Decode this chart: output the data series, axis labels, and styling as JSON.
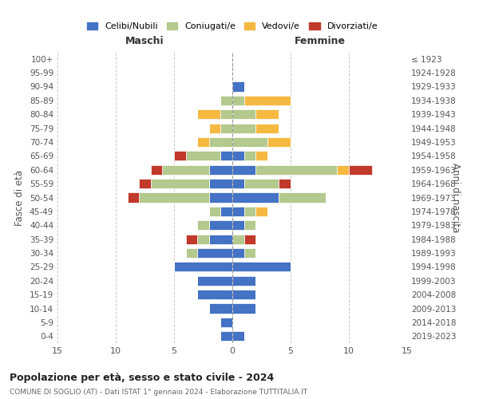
{
  "age_groups": [
    "0-4",
    "5-9",
    "10-14",
    "15-19",
    "20-24",
    "25-29",
    "30-34",
    "35-39",
    "40-44",
    "45-49",
    "50-54",
    "55-59",
    "60-64",
    "65-69",
    "70-74",
    "75-79",
    "80-84",
    "85-89",
    "90-94",
    "95-99",
    "100+"
  ],
  "birth_years": [
    "2019-2023",
    "2014-2018",
    "2009-2013",
    "2004-2008",
    "1999-2003",
    "1994-1998",
    "1989-1993",
    "1984-1988",
    "1979-1983",
    "1974-1978",
    "1969-1973",
    "1964-1968",
    "1959-1963",
    "1954-1958",
    "1949-1953",
    "1944-1948",
    "1939-1943",
    "1934-1938",
    "1929-1933",
    "1924-1928",
    "≤ 1923"
  ],
  "colors": {
    "celibi": "#4472C4",
    "coniugati": "#b3c98d",
    "vedovi": "#f5b942",
    "divorziati": "#c0392b"
  },
  "maschi": {
    "celibi": [
      1,
      1,
      2,
      3,
      3,
      5,
      3,
      2,
      2,
      1,
      2,
      2,
      2,
      1,
      0,
      0,
      0,
      0,
      0,
      0,
      0
    ],
    "coniugati": [
      0,
      0,
      0,
      0,
      0,
      0,
      1,
      1,
      1,
      1,
      6,
      5,
      4,
      3,
      2,
      1,
      1,
      1,
      0,
      0,
      0
    ],
    "vedovi": [
      0,
      0,
      0,
      0,
      0,
      0,
      0,
      0,
      0,
      0,
      0,
      0,
      0,
      0,
      1,
      1,
      2,
      0,
      0,
      0,
      0
    ],
    "divorziati": [
      0,
      0,
      0,
      0,
      0,
      0,
      0,
      1,
      0,
      0,
      1,
      1,
      1,
      1,
      0,
      0,
      0,
      0,
      0,
      0,
      0
    ]
  },
  "femmine": {
    "celibi": [
      1,
      0,
      2,
      2,
      2,
      5,
      1,
      0,
      1,
      1,
      4,
      1,
      2,
      1,
      0,
      0,
      0,
      0,
      1,
      0,
      0
    ],
    "coniugati": [
      0,
      0,
      0,
      0,
      0,
      0,
      1,
      1,
      1,
      1,
      4,
      3,
      7,
      1,
      3,
      2,
      2,
      1,
      0,
      0,
      0
    ],
    "vedovi": [
      0,
      0,
      0,
      0,
      0,
      0,
      0,
      0,
      0,
      1,
      0,
      0,
      1,
      1,
      2,
      2,
      2,
      4,
      0,
      0,
      0
    ],
    "divorziati": [
      0,
      0,
      0,
      0,
      0,
      0,
      0,
      1,
      0,
      0,
      0,
      1,
      2,
      0,
      0,
      0,
      0,
      0,
      0,
      0,
      0
    ]
  },
  "xlim": 15,
  "title": "Popolazione per età, sesso e stato civile - 2024",
  "subtitle": "COMUNE DI SOGLIO (AT) - Dati ISTAT 1° gennaio 2024 - Elaborazione TUTTITALIA.IT",
  "ylabel_left": "Fasce di età",
  "ylabel_right": "Anni di nascita",
  "xlabel_left": "Maschi",
  "xlabel_right": "Femmine",
  "legend_labels": [
    "Celibi/Nubili",
    "Coniugati/e",
    "Vedovi/e",
    "Divorziati/e"
  ],
  "background_color": "#ffffff",
  "grid_color": "#cccccc"
}
